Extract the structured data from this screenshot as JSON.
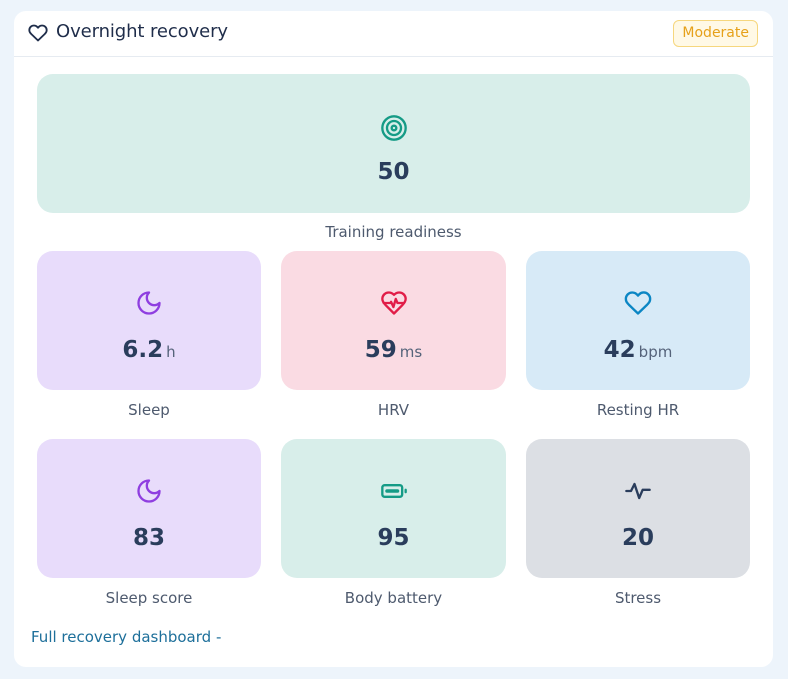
{
  "card": {
    "title": "Overnight recovery",
    "status_badge": "Moderate",
    "header_icon": "heart-outline-icon"
  },
  "featured_metric": {
    "label": "Training readiness",
    "value": "50",
    "icon": "target-icon",
    "background": "#d8eeea",
    "icon_color": "#159b86"
  },
  "metrics": [
    {
      "label": "Sleep",
      "value": "6.2",
      "unit": "h",
      "icon": "moon-icon",
      "background": "#e8dcfb",
      "icon_color": "#8f3ee0"
    },
    {
      "label": "HRV",
      "value": "59",
      "unit": "ms",
      "icon": "heart-pulse-icon",
      "background": "#fadbe3",
      "icon_color": "#e11d48"
    },
    {
      "label": "Resting HR",
      "value": "42",
      "unit": "bpm",
      "icon": "heart-icon",
      "background": "#d7eaf7",
      "icon_color": "#0b86c4"
    },
    {
      "label": "Sleep score",
      "value": "83",
      "unit": "",
      "icon": "moon-icon",
      "background": "#e8dcfb",
      "icon_color": "#8f3ee0"
    },
    {
      "label": "Body battery",
      "value": "95",
      "unit": "",
      "icon": "battery-icon",
      "background": "#d8eeea",
      "icon_color": "#159b86"
    },
    {
      "label": "Stress",
      "value": "20",
      "unit": "",
      "icon": "activity-icon",
      "background": "#dcdfe4",
      "icon_color": "#2a3d5c"
    }
  ],
  "footer": {
    "link_label": "Full recovery dashboard -"
  }
}
